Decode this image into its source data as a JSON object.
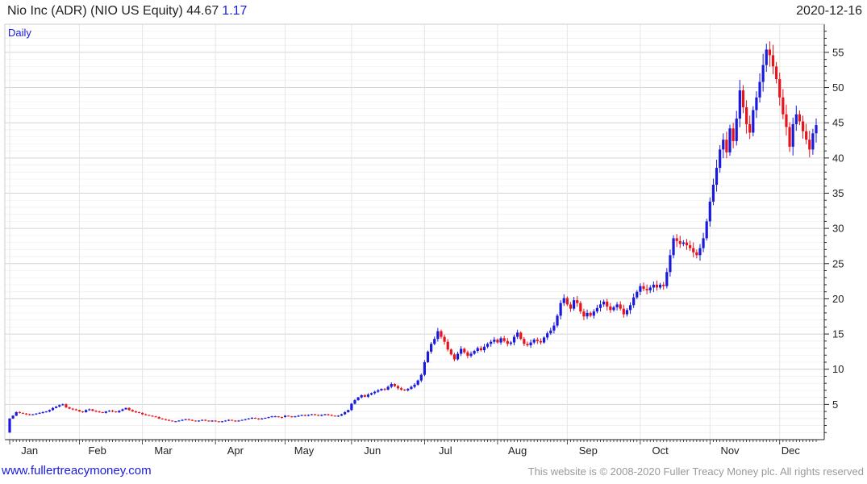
{
  "header": {
    "title": "Nio Inc (ADR) (NIO US Equity) 44.67",
    "change": "1.17",
    "date": "2020-12-16"
  },
  "footer": {
    "url": "www.fullertreacymoney.com",
    "copyright": "This website is © 2008-2020 Fuller Treacy Money plc. All rights reserved"
  },
  "colors": {
    "up": "#1a1adb",
    "down": "#e8141c",
    "grid": "#e2e2e2",
    "axis": "#222222"
  },
  "chart_data": {
    "type": "candlestick",
    "period_label": "Daily",
    "y_ticks": [
      5,
      10,
      15,
      20,
      25,
      30,
      35,
      40,
      45,
      50,
      55
    ],
    "ylim": [
      0,
      59
    ],
    "x_ticks": [
      "Jan",
      "Feb",
      "Mar",
      "Apr",
      "May",
      "Jun",
      "Jul",
      "Aug",
      "Sep",
      "Oct",
      "Nov",
      "Dec"
    ],
    "months": [
      {
        "label": "Jan",
        "start": 1,
        "closes": [
          3.0,
          3.4,
          3.9,
          3.8,
          3.7,
          3.6,
          3.5,
          3.6,
          3.7,
          3.8,
          3.9,
          4.0,
          4.2,
          4.5,
          4.7,
          4.9,
          5.0,
          4.6,
          4.4,
          4.3,
          4.2
        ]
      },
      {
        "label": "Feb",
        "start": 4.2,
        "closes": [
          4.0,
          3.9,
          4.2,
          4.3,
          4.1,
          4.0,
          3.9,
          3.8,
          4.0,
          4.1,
          4.0,
          3.9,
          4.1,
          4.3,
          4.5,
          4.2,
          4.0,
          3.9,
          3.8
        ]
      },
      {
        "label": "Mar",
        "start": 3.8,
        "closes": [
          3.6,
          3.5,
          3.4,
          3.3,
          3.2,
          3.0,
          2.9,
          2.8,
          2.7,
          2.6,
          2.6,
          2.7,
          2.8,
          2.9,
          2.8,
          2.7,
          2.6,
          2.7,
          2.8,
          2.7,
          2.6,
          2.7
        ]
      },
      {
        "label": "Apr",
        "start": 2.7,
        "closes": [
          2.6,
          2.5,
          2.6,
          2.7,
          2.8,
          2.7,
          2.6,
          2.7,
          2.8,
          2.9,
          3.0,
          3.1,
          3.0,
          2.9,
          3.0,
          3.1,
          3.2,
          3.3,
          3.3,
          3.2,
          3.1
        ]
      },
      {
        "label": "May",
        "start": 3.2,
        "closes": [
          3.4,
          3.3,
          3.2,
          3.3,
          3.4,
          3.5,
          3.4,
          3.5,
          3.6,
          3.5,
          3.4,
          3.5,
          3.6,
          3.5,
          3.4,
          3.3,
          3.4,
          3.6,
          3.9,
          4.2
        ]
      },
      {
        "label": "Jun",
        "start": 4.2,
        "closes": [
          5.1,
          5.6,
          6.0,
          6.3,
          6.1,
          6.4,
          6.6,
          6.8,
          7.0,
          7.2,
          7.1,
          7.5,
          7.9,
          7.6,
          7.3,
          7.1,
          7.0,
          7.2,
          7.5,
          7.8,
          8.4,
          9.2
        ]
      },
      {
        "label": "Jul",
        "start": 9.2,
        "closes": [
          11.0,
          12.5,
          13.6,
          14.3,
          15.4,
          14.6,
          13.9,
          12.8,
          12.1,
          11.4,
          12.2,
          12.9,
          12.4,
          11.9,
          12.2,
          12.6,
          13.0,
          12.7,
          13.2,
          13.6,
          13.9,
          14.2
        ]
      },
      {
        "label": "Aug",
        "start": 14.2,
        "closes": [
          13.8,
          14.4,
          14.0,
          13.6,
          13.8,
          14.6,
          15.2,
          14.3,
          13.6,
          13.4,
          13.8,
          14.2,
          14.0,
          13.8,
          14.5,
          15.1,
          15.5,
          16.2,
          17.6,
          19.4,
          20.1
        ]
      },
      {
        "label": "Sep",
        "start": 20.1,
        "closes": [
          19.2,
          18.6,
          19.8,
          19.4,
          18.2,
          17.5,
          18.0,
          17.6,
          18.2,
          18.7,
          19.2,
          19.6,
          18.9,
          18.4,
          18.8,
          19.2,
          18.6,
          17.8,
          18.4,
          19.1,
          20.2,
          21.0
        ]
      },
      {
        "label": "Oct",
        "start": 21.0,
        "closes": [
          21.8,
          21.4,
          21.2,
          21.6,
          22.0,
          21.6,
          22.0,
          21.8,
          23.8,
          26.2,
          28.6,
          28.2,
          27.8,
          28.0,
          27.6,
          27.2,
          26.6,
          26.2,
          27.2,
          28.6,
          31.0
        ]
      },
      {
        "label": "Nov",
        "start": 31.0,
        "closes": [
          33.8,
          36.2,
          38.6,
          41.2,
          42.6,
          40.8,
          44.2,
          42.4,
          45.6,
          49.6,
          47.2,
          44.8,
          43.6,
          46.8,
          48.6,
          50.8,
          53.2,
          55.4,
          54.6,
          53.0,
          51.2
        ]
      },
      {
        "label": "Dec",
        "start": 51.2,
        "closes": [
          48.6,
          46.2,
          44.4,
          41.6,
          44.8,
          46.2,
          45.2,
          43.8,
          42.6,
          41.2,
          43.5,
          44.67
        ]
      }
    ]
  }
}
